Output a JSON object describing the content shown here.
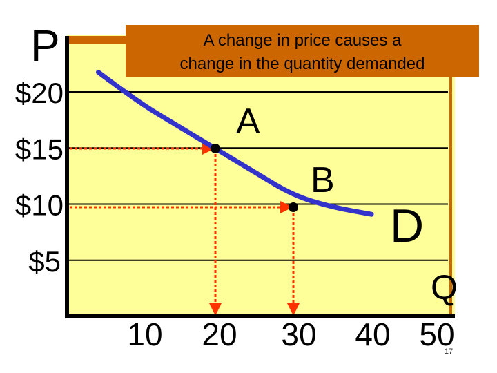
{
  "slide": {
    "page_number": "17"
  },
  "callout": {
    "line1": "A change in price causes a",
    "line2": "change in the quantity demanded"
  },
  "colors": {
    "plot_bg": "#ffff99",
    "curve": "#3333cc",
    "arrow": "#ff3300",
    "callout_bg": "#cc6600",
    "top_bar": "#cc6600",
    "axis": "#000000"
  },
  "chart_data": {
    "type": "line",
    "xlabel": "Q",
    "ylabel": "P",
    "x_ticks": [
      10,
      20,
      30,
      40,
      50
    ],
    "x_tick_labels": [
      "10",
      "20",
      "30",
      "40",
      "50"
    ],
    "y_ticks": [
      5,
      10,
      15,
      20
    ],
    "y_tick_labels": [
      "$5",
      "$10",
      "$15",
      "$20"
    ],
    "xlim": [
      0,
      50
    ],
    "ylim": [
      0,
      25
    ],
    "grid": "horizontal",
    "series": [
      {
        "label": "D",
        "x": [
          5,
          10,
          15,
          20,
          25,
          30,
          35,
          40
        ],
        "y": [
          21.5,
          19,
          17,
          15,
          13,
          11,
          10,
          9.4
        ]
      }
    ],
    "points": [
      {
        "label": "A",
        "x": 20,
        "y": 15
      },
      {
        "label": "B",
        "x": 30,
        "y": 10
      }
    ]
  }
}
